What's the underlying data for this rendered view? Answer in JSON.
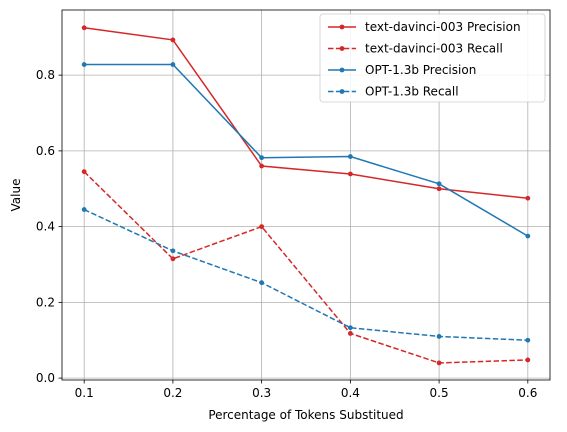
{
  "chart_data": {
    "type": "line",
    "title": "",
    "xlabel": "Percentage of Tokens Substitued",
    "ylabel": "Value",
    "x": [
      0.1,
      0.2,
      0.3,
      0.4,
      0.5,
      0.6
    ],
    "xticks": [
      "0.1",
      "0.2",
      "0.3",
      "0.4",
      "0.5",
      "0.6"
    ],
    "yticks": [
      "0.0",
      "0.2",
      "0.4",
      "0.6",
      "0.8"
    ],
    "xlim": [
      0.075,
      0.625
    ],
    "ylim": [
      -0.005,
      0.972
    ],
    "grid": true,
    "legend_position": "top-right",
    "series": [
      {
        "name": "text-davinci-003 Precision",
        "color": "#d62728",
        "linestyle": "solid",
        "values": [
          0.925,
          0.893,
          0.56,
          0.539,
          0.5,
          0.475
        ]
      },
      {
        "name": "text-davinci-003 Recall",
        "color": "#d62728",
        "linestyle": "dashed",
        "values": [
          0.545,
          0.315,
          0.4,
          0.118,
          0.04,
          0.048
        ]
      },
      {
        "name": "OPT-1.3b Precision",
        "color": "#1f77b4",
        "linestyle": "solid",
        "values": [
          0.828,
          0.828,
          0.582,
          0.585,
          0.513,
          0.375
        ]
      },
      {
        "name": "OPT-1.3b Recall",
        "color": "#1f77b4",
        "linestyle": "dashed",
        "values": [
          0.445,
          0.336,
          0.252,
          0.133,
          0.11,
          0.1
        ]
      }
    ]
  }
}
